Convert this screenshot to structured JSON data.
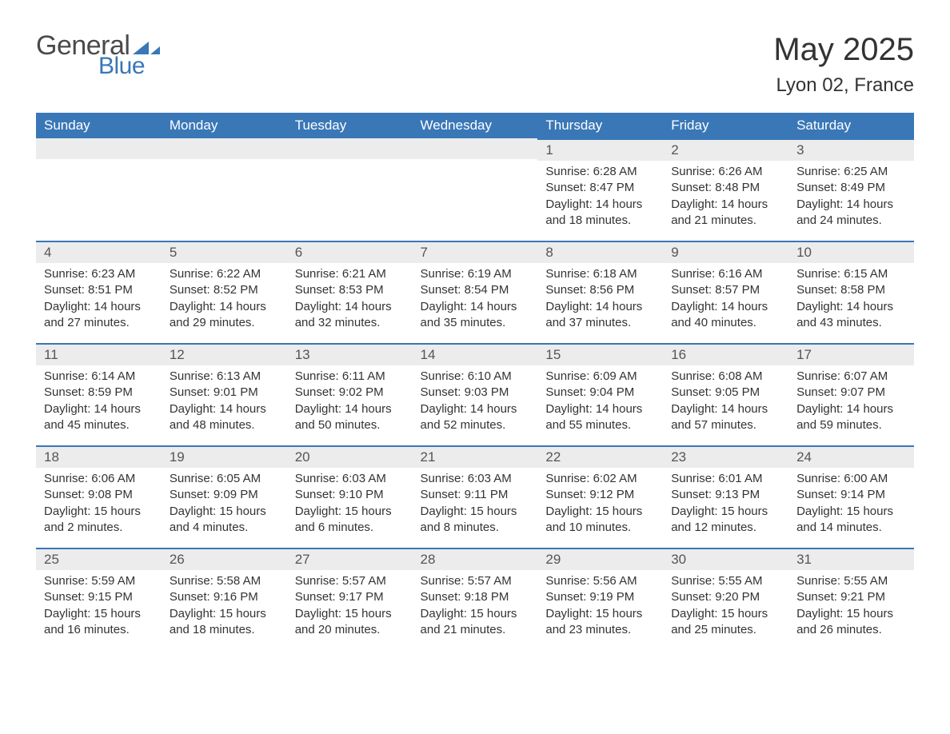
{
  "logo": {
    "text1": "General",
    "text2": "Blue",
    "tri_color": "#3a77b7"
  },
  "header": {
    "title": "May 2025",
    "location": "Lyon 02, France"
  },
  "colors": {
    "header_bg": "#3a77b7",
    "header_text": "#ffffff",
    "daynum_bg": "#ececec",
    "daynum_border": "#3a77b7",
    "body_text": "#333333"
  },
  "font": {
    "family": "Arial",
    "header_size": 17,
    "title_size": 40,
    "location_size": 24,
    "cell_size": 15
  },
  "weekdays": [
    "Sunday",
    "Monday",
    "Tuesday",
    "Wednesday",
    "Thursday",
    "Friday",
    "Saturday"
  ],
  "weeks": [
    [
      null,
      null,
      null,
      null,
      {
        "d": "1",
        "sunrise": "6:28 AM",
        "sunset": "8:47 PM",
        "daylight": "14 hours and 18 minutes."
      },
      {
        "d": "2",
        "sunrise": "6:26 AM",
        "sunset": "8:48 PM",
        "daylight": "14 hours and 21 minutes."
      },
      {
        "d": "3",
        "sunrise": "6:25 AM",
        "sunset": "8:49 PM",
        "daylight": "14 hours and 24 minutes."
      }
    ],
    [
      {
        "d": "4",
        "sunrise": "6:23 AM",
        "sunset": "8:51 PM",
        "daylight": "14 hours and 27 minutes."
      },
      {
        "d": "5",
        "sunrise": "6:22 AM",
        "sunset": "8:52 PM",
        "daylight": "14 hours and 29 minutes."
      },
      {
        "d": "6",
        "sunrise": "6:21 AM",
        "sunset": "8:53 PM",
        "daylight": "14 hours and 32 minutes."
      },
      {
        "d": "7",
        "sunrise": "6:19 AM",
        "sunset": "8:54 PM",
        "daylight": "14 hours and 35 minutes."
      },
      {
        "d": "8",
        "sunrise": "6:18 AM",
        "sunset": "8:56 PM",
        "daylight": "14 hours and 37 minutes."
      },
      {
        "d": "9",
        "sunrise": "6:16 AM",
        "sunset": "8:57 PM",
        "daylight": "14 hours and 40 minutes."
      },
      {
        "d": "10",
        "sunrise": "6:15 AM",
        "sunset": "8:58 PM",
        "daylight": "14 hours and 43 minutes."
      }
    ],
    [
      {
        "d": "11",
        "sunrise": "6:14 AM",
        "sunset": "8:59 PM",
        "daylight": "14 hours and 45 minutes."
      },
      {
        "d": "12",
        "sunrise": "6:13 AM",
        "sunset": "9:01 PM",
        "daylight": "14 hours and 48 minutes."
      },
      {
        "d": "13",
        "sunrise": "6:11 AM",
        "sunset": "9:02 PM",
        "daylight": "14 hours and 50 minutes."
      },
      {
        "d": "14",
        "sunrise": "6:10 AM",
        "sunset": "9:03 PM",
        "daylight": "14 hours and 52 minutes."
      },
      {
        "d": "15",
        "sunrise": "6:09 AM",
        "sunset": "9:04 PM",
        "daylight": "14 hours and 55 minutes."
      },
      {
        "d": "16",
        "sunrise": "6:08 AM",
        "sunset": "9:05 PM",
        "daylight": "14 hours and 57 minutes."
      },
      {
        "d": "17",
        "sunrise": "6:07 AM",
        "sunset": "9:07 PM",
        "daylight": "14 hours and 59 minutes."
      }
    ],
    [
      {
        "d": "18",
        "sunrise": "6:06 AM",
        "sunset": "9:08 PM",
        "daylight": "15 hours and 2 minutes."
      },
      {
        "d": "19",
        "sunrise": "6:05 AM",
        "sunset": "9:09 PM",
        "daylight": "15 hours and 4 minutes."
      },
      {
        "d": "20",
        "sunrise": "6:03 AM",
        "sunset": "9:10 PM",
        "daylight": "15 hours and 6 minutes."
      },
      {
        "d": "21",
        "sunrise": "6:03 AM",
        "sunset": "9:11 PM",
        "daylight": "15 hours and 8 minutes."
      },
      {
        "d": "22",
        "sunrise": "6:02 AM",
        "sunset": "9:12 PM",
        "daylight": "15 hours and 10 minutes."
      },
      {
        "d": "23",
        "sunrise": "6:01 AM",
        "sunset": "9:13 PM",
        "daylight": "15 hours and 12 minutes."
      },
      {
        "d": "24",
        "sunrise": "6:00 AM",
        "sunset": "9:14 PM",
        "daylight": "15 hours and 14 minutes."
      }
    ],
    [
      {
        "d": "25",
        "sunrise": "5:59 AM",
        "sunset": "9:15 PM",
        "daylight": "15 hours and 16 minutes."
      },
      {
        "d": "26",
        "sunrise": "5:58 AM",
        "sunset": "9:16 PM",
        "daylight": "15 hours and 18 minutes."
      },
      {
        "d": "27",
        "sunrise": "5:57 AM",
        "sunset": "9:17 PM",
        "daylight": "15 hours and 20 minutes."
      },
      {
        "d": "28",
        "sunrise": "5:57 AM",
        "sunset": "9:18 PM",
        "daylight": "15 hours and 21 minutes."
      },
      {
        "d": "29",
        "sunrise": "5:56 AM",
        "sunset": "9:19 PM",
        "daylight": "15 hours and 23 minutes."
      },
      {
        "d": "30",
        "sunrise": "5:55 AM",
        "sunset": "9:20 PM",
        "daylight": "15 hours and 25 minutes."
      },
      {
        "d": "31",
        "sunrise": "5:55 AM",
        "sunset": "9:21 PM",
        "daylight": "15 hours and 26 minutes."
      }
    ]
  ],
  "labels": {
    "sunrise": "Sunrise:",
    "sunset": "Sunset:",
    "daylight": "Daylight:"
  }
}
